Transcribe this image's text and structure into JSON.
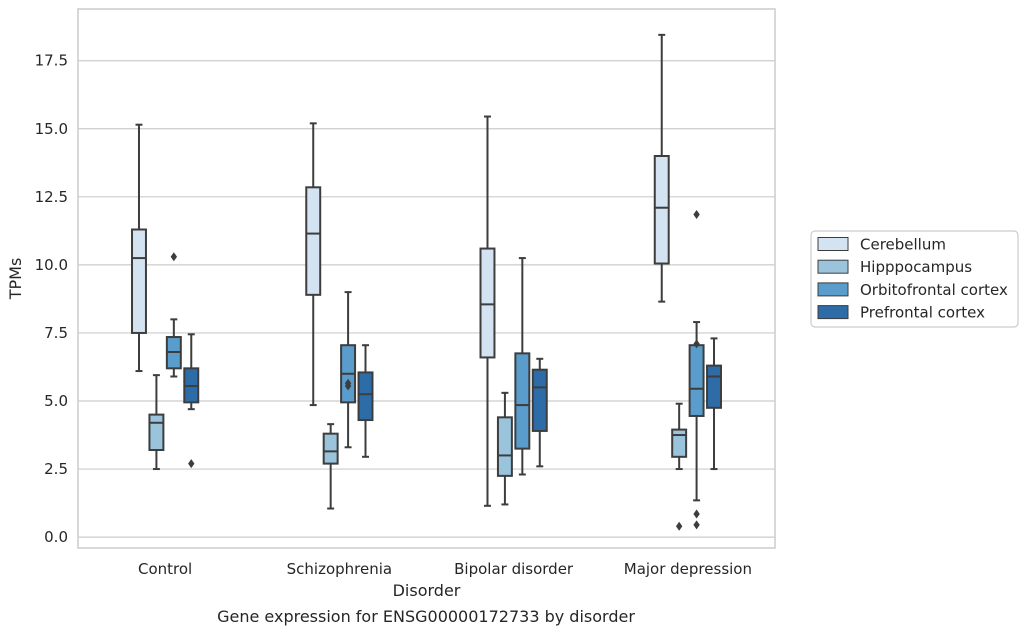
{
  "chart_data": {
    "type": "boxplot",
    "title": "",
    "caption": "Gene expression for ENSG00000172733 by disorder",
    "xlabel": "Disorder",
    "ylabel": "TPMs",
    "ylim": [
      -0.4,
      19.4
    ],
    "yticks": [
      0.0,
      2.5,
      5.0,
      7.5,
      10.0,
      12.5,
      15.0,
      17.5
    ],
    "ytick_labels": [
      "0.0",
      "2.5",
      "5.0",
      "7.5",
      "10.0",
      "12.5",
      "15.0",
      "17.5"
    ],
    "grid": "horizontal",
    "legend_position": "right",
    "categories": [
      "Control",
      "Schizophrenia",
      "Bipolar disorder",
      "Major depression"
    ],
    "series": [
      {
        "name": "Cerebellum",
        "color": "#d4e3f2",
        "boxes": [
          {
            "whislo": 6.1,
            "q1": 7.5,
            "med": 10.25,
            "q3": 11.3,
            "whishi": 15.15,
            "fliers": []
          },
          {
            "whislo": 4.85,
            "q1": 8.9,
            "med": 11.15,
            "q3": 12.85,
            "whishi": 15.2,
            "fliers": []
          },
          {
            "whislo": 1.15,
            "q1": 6.6,
            "med": 8.55,
            "q3": 10.6,
            "whishi": 15.45,
            "fliers": []
          },
          {
            "whislo": 8.65,
            "q1": 10.05,
            "med": 12.1,
            "q3": 14.0,
            "whishi": 18.45,
            "fliers": []
          }
        ]
      },
      {
        "name": "Hipppocampus",
        "color": "#9ac3dc",
        "boxes": [
          {
            "whislo": 2.5,
            "q1": 3.2,
            "med": 4.2,
            "q3": 4.5,
            "whishi": 5.95,
            "fliers": []
          },
          {
            "whislo": 1.05,
            "q1": 2.7,
            "med": 3.15,
            "q3": 3.8,
            "whishi": 4.15,
            "fliers": []
          },
          {
            "whislo": 1.2,
            "q1": 2.25,
            "med": 3.0,
            "q3": 4.4,
            "whishi": 5.3,
            "fliers": []
          },
          {
            "whislo": 2.5,
            "q1": 2.95,
            "med": 3.75,
            "q3": 3.95,
            "whishi": 4.9,
            "fliers": [
              0.4
            ]
          }
        ]
      },
      {
        "name": "Orbitofrontal cortex",
        "color": "#5a9ccc",
        "boxes": [
          {
            "whislo": 5.9,
            "q1": 6.2,
            "med": 6.8,
            "q3": 7.35,
            "whishi": 8.0,
            "fliers": [
              10.3
            ]
          },
          {
            "whislo": 3.3,
            "q1": 4.95,
            "med": 6.0,
            "q3": 7.05,
            "whishi": 9.0,
            "fliers": [
              5.55,
              5.65
            ]
          },
          {
            "whislo": 2.3,
            "q1": 3.25,
            "med": 4.85,
            "q3": 6.75,
            "whishi": 10.25,
            "fliers": []
          },
          {
            "whislo": 1.35,
            "q1": 4.45,
            "med": 5.45,
            "q3": 7.05,
            "whishi": 7.9,
            "fliers": [
              0.45,
              0.85,
              7.1,
              11.85
            ]
          }
        ]
      },
      {
        "name": "Prefrontal cortex",
        "color": "#2e6ca8",
        "boxes": [
          {
            "whislo": 4.7,
            "q1": 4.95,
            "med": 5.55,
            "q3": 6.2,
            "whishi": 7.45,
            "fliers": [
              2.7
            ]
          },
          {
            "whislo": 2.95,
            "q1": 4.3,
            "med": 5.25,
            "q3": 6.05,
            "whishi": 7.05,
            "fliers": []
          },
          {
            "whislo": 2.6,
            "q1": 3.9,
            "med": 5.5,
            "q3": 6.15,
            "whishi": 6.55,
            "fliers": []
          },
          {
            "whislo": 2.5,
            "q1": 4.75,
            "med": 5.9,
            "q3": 6.3,
            "whishi": 7.3,
            "fliers": []
          }
        ]
      }
    ]
  }
}
